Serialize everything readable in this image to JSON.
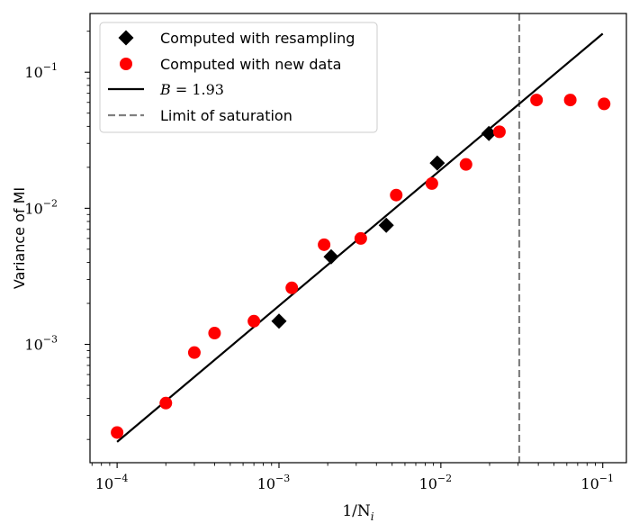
{
  "chart_data": {
    "type": "scatter",
    "xscale": "log",
    "yscale": "log",
    "xlabel": "1/N",
    "xlabel_sub": "i",
    "ylabel": "Variance of MI",
    "xlim": [
      6.8e-05,
      0.14
    ],
    "ylim": [
      0.000135,
      0.27
    ],
    "x_ticks": [
      {
        "value": 0.0001,
        "base": "10",
        "exp": "−4"
      },
      {
        "value": 0.001,
        "base": "10",
        "exp": "−3"
      },
      {
        "value": 0.01,
        "base": "10",
        "exp": "−2"
      },
      {
        "value": 0.1,
        "base": "10",
        "exp": "−1"
      }
    ],
    "y_ticks": [
      {
        "value": 0.001,
        "base": "10",
        "exp": "−3"
      },
      {
        "value": 0.01,
        "base": "10",
        "exp": "−2"
      },
      {
        "value": 0.1,
        "base": "10",
        "exp": "−1"
      }
    ],
    "series": [
      {
        "name": "Computed with resampling",
        "marker": "diamond",
        "color": "#000000",
        "points": [
          {
            "x": 0.001,
            "y": 0.00148
          },
          {
            "x": 0.0021,
            "y": 0.0044
          },
          {
            "x": 0.0046,
            "y": 0.0075
          },
          {
            "x": 0.0095,
            "y": 0.0215
          },
          {
            "x": 0.0198,
            "y": 0.0355
          }
        ]
      },
      {
        "name": "Computed with new data",
        "marker": "circle",
        "color": "#ff0000",
        "points": [
          {
            "x": 0.0001,
            "y": 0.000225
          },
          {
            "x": 0.0002,
            "y": 0.00037
          },
          {
            "x": 0.0003,
            "y": 0.00087
          },
          {
            "x": 0.0004,
            "y": 0.00121
          },
          {
            "x": 0.0007,
            "y": 0.00148
          },
          {
            "x": 0.0012,
            "y": 0.0026
          },
          {
            "x": 0.0019,
            "y": 0.0054
          },
          {
            "x": 0.0032,
            "y": 0.006
          },
          {
            "x": 0.0053,
            "y": 0.0125
          },
          {
            "x": 0.0088,
            "y": 0.0152
          },
          {
            "x": 0.0143,
            "y": 0.021
          },
          {
            "x": 0.023,
            "y": 0.0365
          },
          {
            "x": 0.039,
            "y": 0.0625
          },
          {
            "x": 0.063,
            "y": 0.0625
          },
          {
            "x": 0.102,
            "y": 0.0585
          }
        ]
      }
    ],
    "fit_line": {
      "name": "B = 1.93",
      "label_var": "B",
      "label_eq": " = 1.93",
      "color": "#000000",
      "points": [
        {
          "x": 0.0001,
          "y": 0.000192
        },
        {
          "x": 0.1,
          "y": 0.192
        }
      ]
    },
    "saturation_line": {
      "name": "Limit of saturation",
      "x": 0.0305,
      "color": "#808080"
    },
    "legend": {
      "position": "top-left",
      "entries": [
        "Computed with resampling",
        "Computed with new data",
        "B = 1.93",
        "Limit of saturation"
      ]
    }
  }
}
